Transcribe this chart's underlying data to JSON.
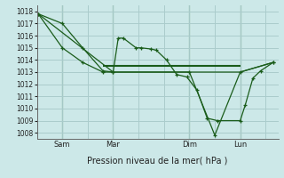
{
  "background_color": "#cce8e8",
  "grid_color": "#aacccc",
  "line_color": "#1a5c1a",
  "title": "Pression niveau de la mer( hPa )",
  "ylim": [
    1007.5,
    1018.5
  ],
  "yticks": [
    1008,
    1009,
    1010,
    1011,
    1012,
    1013,
    1014,
    1015,
    1016,
    1017,
    1018
  ],
  "day_labels": [
    "Sam",
    "Mar",
    "Dim",
    "Lun"
  ],
  "day_positions": [
    1,
    3,
    6,
    8
  ],
  "xlim": [
    0,
    9.5
  ],
  "line1_x": [
    0.05,
    1.0,
    1.8,
    2.6,
    3.0,
    3.2,
    3.4,
    3.9,
    4.1,
    4.5,
    4.7,
    5.1,
    5.5,
    5.9,
    6.3,
    6.7,
    7.1,
    8.0,
    8.2,
    8.5,
    8.8,
    9.3
  ],
  "line1_y": [
    1017.8,
    1017.0,
    1015.0,
    1013.1,
    1013.0,
    1015.8,
    1015.8,
    1015.0,
    1015.0,
    1014.9,
    1014.8,
    1014.0,
    1012.8,
    1012.6,
    1011.5,
    1009.2,
    1009.0,
    1009.0,
    1010.3,
    1012.5,
    1013.1,
    1013.8
  ],
  "line2_x": [
    0.05,
    1.0,
    1.8,
    2.6,
    3.0,
    6.0,
    7.0,
    8.0,
    9.3
  ],
  "line2_y": [
    1017.8,
    1015.0,
    1013.8,
    1013.0,
    1013.0,
    1013.0,
    1007.8,
    1013.0,
    1013.8
  ],
  "line3_x": [
    0.05,
    3.0,
    8.0,
    9.3
  ],
  "line3_y": [
    1017.8,
    1013.0,
    1013.0,
    1013.8
  ],
  "hline_y": 1013.5,
  "hline_x_start": 2.6,
  "hline_x_end": 8.0,
  "vline_positions": [
    1,
    3,
    6,
    8
  ]
}
